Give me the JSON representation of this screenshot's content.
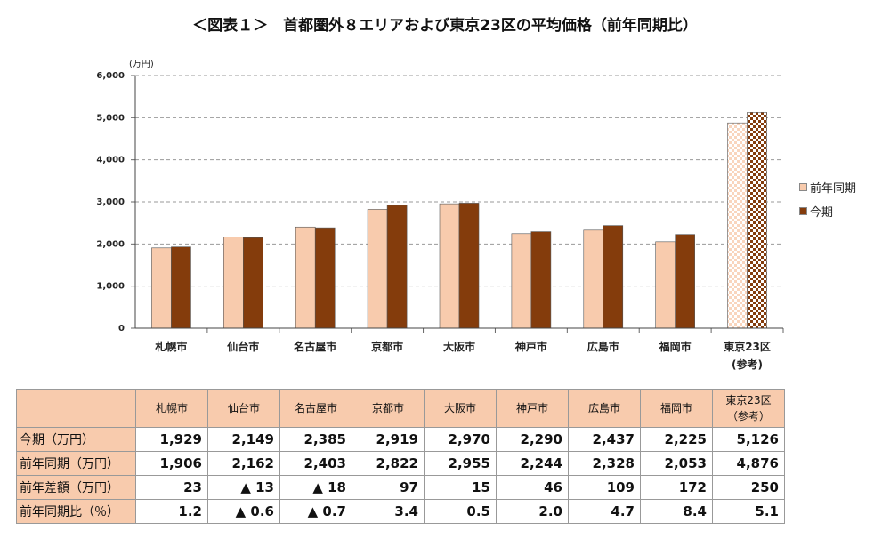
{
  "chart_data": {
    "type": "bar",
    "title": "＜図表１＞　首都圏外８エリアおよび東京23区の平均価格（前年同期比）",
    "y_unit": "(万円)",
    "categories": [
      "札幌市",
      "仙台市",
      "名古屋市",
      "京都市",
      "大阪市",
      "神戸市",
      "広島市",
      "福岡市",
      "東京23区\n(参考)"
    ],
    "series": [
      {
        "name": "前年同期",
        "color": "#f8cbad",
        "values": [
          1906,
          2162,
          2403,
          2822,
          2955,
          2244,
          2328,
          2053,
          4876
        ]
      },
      {
        "name": "今期",
        "color": "#843c0c",
        "values": [
          1929,
          2149,
          2385,
          2919,
          2970,
          2290,
          2437,
          2225,
          5126
        ]
      }
    ],
    "ylim": [
      0,
      6000
    ],
    "yticks": [
      0,
      {
        "value": 1000,
        "label": "1,000"
      },
      {
        "value": 2000,
        "label": "2,000"
      },
      {
        "value": 3000,
        "label": "3,000"
      },
      {
        "value": 4000,
        "label": "4,000"
      },
      {
        "value": 5000,
        "label": "5,000"
      },
      {
        "value": 6000,
        "label": "6,000"
      }
    ],
    "grid": true,
    "legend": "right"
  },
  "table": {
    "columns": [
      "札幌市",
      "仙台市",
      "名古屋市",
      "京都市",
      "大阪市",
      "神戸市",
      "広島市",
      "福岡市",
      "東京23区\n（参考）"
    ],
    "rows": [
      {
        "label": "今期（万円）",
        "cells": [
          "1,929",
          "2,149",
          "2,385",
          "2,919",
          "2,970",
          "2,290",
          "2,437",
          "2,225",
          "5,126"
        ]
      },
      {
        "label": "前年同期（万円）",
        "cells": [
          "1,906",
          "2,162",
          "2,403",
          "2,822",
          "2,955",
          "2,244",
          "2,328",
          "2,053",
          "4,876"
        ]
      },
      {
        "label": "前年差額（万円）",
        "cells": [
          "23",
          "▲ 13",
          "▲ 18",
          "97",
          "15",
          "46",
          "109",
          "172",
          "250"
        ]
      },
      {
        "label": "前年同期比（％）",
        "cells": [
          "1.2",
          "▲ 0.6",
          "▲ 0.7",
          "3.4",
          "0.5",
          "2.0",
          "4.7",
          "8.4",
          "5.1"
        ]
      }
    ]
  }
}
